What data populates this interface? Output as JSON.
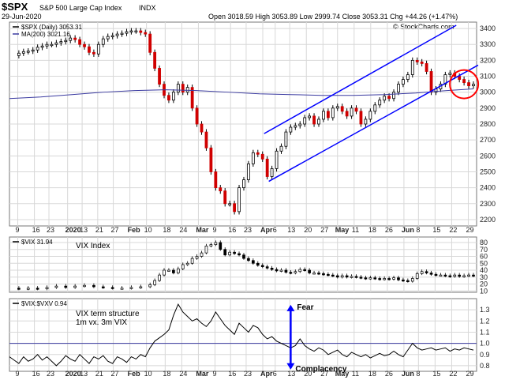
{
  "header": {
    "symbol_title": "$SPX",
    "symbol_desc": "S&P 500 Large Cap Index",
    "exchange": "INDX",
    "date": "29-Jun-2020",
    "ohlc": "Open 3018.59  High 3053.89  Low 2999.74  Close 3053.31  Chg +44.26 (+1.47%)",
    "watermark": "© StockCharts.com"
  },
  "chart_data": [
    {
      "type": "candlestick",
      "title": "",
      "legend": [
        {
          "label": "$SPX (Daily) 3053.31",
          "color": "#000000"
        },
        {
          "label": "MA(200) 3021.16",
          "color": "#3a3aa0"
        }
      ],
      "ylim": [
        2160,
        3440
      ],
      "yticks": [
        2200,
        2300,
        2400,
        2500,
        2600,
        2700,
        2800,
        2900,
        3000,
        3100,
        3200,
        3300,
        3400
      ],
      "close_path": [
        [
          3,
          3230
        ],
        [
          6,
          3245
        ],
        [
          9,
          3255
        ],
        [
          12,
          3258
        ],
        [
          15,
          3265
        ],
        [
          18,
          3282
        ],
        [
          21,
          3290
        ],
        [
          24,
          3300
        ],
        [
          27,
          3300
        ],
        [
          30,
          3310
        ],
        [
          33,
          3318
        ],
        [
          36,
          3325
        ],
        [
          39,
          3340
        ],
        [
          42,
          3330
        ],
        [
          45,
          3300
        ],
        [
          48,
          3285
        ],
        [
          51,
          3250
        ],
        [
          54,
          3240
        ],
        [
          57,
          3300
        ],
        [
          60,
          3335
        ],
        [
          63,
          3350
        ],
        [
          66,
          3355
        ],
        [
          69,
          3365
        ],
        [
          72,
          3370
        ],
        [
          75,
          3380
        ],
        [
          78,
          3385
        ],
        [
          81,
          3385
        ],
        [
          84,
          3375
        ],
        [
          87,
          3365
        ],
        [
          90,
          3250
        ],
        [
          93,
          3150
        ],
        [
          96,
          3050
        ],
        [
          99,
          2980
        ],
        [
          102,
          2950
        ],
        [
          105,
          3000
        ],
        [
          108,
          3050
        ],
        [
          111,
          3000
        ],
        [
          114,
          3030
        ],
        [
          117,
          2900
        ],
        [
          120,
          2800
        ],
        [
          123,
          2750
        ],
        [
          126,
          2650
        ],
        [
          129,
          2500
        ],
        [
          132,
          2400
        ],
        [
          135,
          2380
        ],
        [
          138,
          2300
        ],
        [
          141,
          2300
        ],
        [
          144,
          2250
        ],
        [
          147,
          2400
        ],
        [
          150,
          2450
        ],
        [
          153,
          2550
        ],
        [
          156,
          2620
        ],
        [
          159,
          2610
        ],
        [
          162,
          2580
        ],
        [
          165,
          2470
        ],
        [
          168,
          2520
        ],
        [
          171,
          2630
        ],
        [
          174,
          2660
        ],
        [
          177,
          2750
        ],
        [
          180,
          2780
        ],
        [
          183,
          2790
        ],
        [
          186,
          2800
        ],
        [
          189,
          2840
        ],
        [
          192,
          2850
        ],
        [
          195,
          2800
        ],
        [
          198,
          2830
        ],
        [
          201,
          2880
        ],
        [
          204,
          2840
        ],
        [
          207,
          2900
        ],
        [
          210,
          2910
        ],
        [
          213,
          2880
        ],
        [
          216,
          2850
        ],
        [
          219,
          2900
        ],
        [
          222,
          2880
        ],
        [
          225,
          2800
        ],
        [
          228,
          2830
        ],
        [
          231,
          2880
        ],
        [
          234,
          2920
        ],
        [
          237,
          2950
        ],
        [
          240,
          2975
        ],
        [
          243,
          2960
        ],
        [
          246,
          3000
        ],
        [
          249,
          3050
        ],
        [
          252,
          3080
        ],
        [
          255,
          3110
        ],
        [
          258,
          3200
        ],
        [
          261,
          3190
        ],
        [
          264,
          3180
        ],
        [
          267,
          3130
        ],
        [
          270,
          3000
        ],
        [
          273,
          3020
        ],
        [
          276,
          3050
        ],
        [
          279,
          3110
        ],
        [
          282,
          3120
        ],
        [
          285,
          3100
        ],
        [
          288,
          3080
        ],
        [
          291,
          3060
        ],
        [
          294,
          3040
        ],
        [
          297,
          3050
        ]
      ],
      "ma200": [
        [
          0,
          2960
        ],
        [
          20,
          2970
        ],
        [
          40,
          2985
        ],
        [
          60,
          3000
        ],
        [
          80,
          3010
        ],
        [
          100,
          3015
        ],
        [
          120,
          3010
        ],
        [
          140,
          3000
        ],
        [
          160,
          2990
        ],
        [
          180,
          2985
        ],
        [
          200,
          2980
        ],
        [
          220,
          2980
        ],
        [
          240,
          2985
        ],
        [
          260,
          2995
        ],
        [
          280,
          3010
        ],
        [
          297,
          3021
        ]
      ]
    },
    {
      "type": "candlestick",
      "title": "VIX Index",
      "legend": [
        {
          "label": "$VIX 31.94",
          "color": "#000000"
        }
      ],
      "ylim": [
        8,
        88
      ],
      "yticks": [
        10,
        20,
        30,
        40,
        50,
        60,
        70,
        80
      ],
      "values": [
        [
          0,
          14
        ],
        [
          6,
          13
        ],
        [
          12,
          14
        ],
        [
          18,
          13
        ],
        [
          24,
          15
        ],
        [
          30,
          17
        ],
        [
          36,
          15
        ],
        [
          42,
          17
        ],
        [
          48,
          18
        ],
        [
          54,
          16
        ],
        [
          60,
          15
        ],
        [
          66,
          14
        ],
        [
          72,
          14
        ],
        [
          78,
          15
        ],
        [
          84,
          16
        ],
        [
          90,
          19
        ],
        [
          93,
          25
        ],
        [
          96,
          33
        ],
        [
          99,
          40
        ],
        [
          102,
          40
        ],
        [
          105,
          36
        ],
        [
          108,
          42
        ],
        [
          111,
          48
        ],
        [
          114,
          50
        ],
        [
          117,
          57
        ],
        [
          120,
          60
        ],
        [
          123,
          65
        ],
        [
          126,
          75
        ],
        [
          129,
          77
        ],
        [
          132,
          80
        ],
        [
          135,
          70
        ],
        [
          138,
          62
        ],
        [
          141,
          66
        ],
        [
          144,
          64
        ],
        [
          147,
          62
        ],
        [
          150,
          57
        ],
        [
          153,
          54
        ],
        [
          156,
          50
        ],
        [
          159,
          47
        ],
        [
          162,
          45
        ],
        [
          165,
          43
        ],
        [
          168,
          41
        ],
        [
          171,
          39
        ],
        [
          174,
          40
        ],
        [
          177,
          37
        ],
        [
          180,
          36
        ],
        [
          183,
          38
        ],
        [
          186,
          41
        ],
        [
          189,
          40
        ],
        [
          192,
          36
        ],
        [
          195,
          36
        ],
        [
          198,
          35
        ],
        [
          201,
          34
        ],
        [
          204,
          33
        ],
        [
          207,
          32
        ],
        [
          210,
          30
        ],
        [
          213,
          32
        ],
        [
          216,
          30
        ],
        [
          219,
          31
        ],
        [
          222,
          30
        ],
        [
          225,
          29
        ],
        [
          228,
          28
        ],
        [
          231,
          29
        ],
        [
          234,
          28
        ],
        [
          237,
          27
        ],
        [
          240,
          28
        ],
        [
          243,
          27
        ],
        [
          246,
          29
        ],
        [
          249,
          26
        ],
        [
          252,
          25
        ],
        [
          255,
          24
        ],
        [
          258,
          28
        ],
        [
          261,
          35
        ],
        [
          264,
          38
        ],
        [
          267,
          36
        ],
        [
          270,
          34
        ],
        [
          273,
          33
        ],
        [
          276,
          33
        ],
        [
          279,
          32
        ],
        [
          282,
          31
        ],
        [
          285,
          33
        ],
        [
          288,
          31
        ],
        [
          291,
          32
        ],
        [
          294,
          33
        ],
        [
          297,
          32
        ]
      ]
    },
    {
      "type": "line",
      "title": "VIX term structure\n1m vx. 3m VIX",
      "legend": [
        {
          "label": "$VIX:$VXV 0.94",
          "color": "#000000"
        }
      ],
      "ylim": [
        0.75,
        1.4
      ],
      "yticks": [
        0.8,
        0.9,
        1.0,
        1.1,
        1.2,
        1.3
      ],
      "reference_line": 1.0,
      "annotations": [
        "Fear",
        "Complacency"
      ],
      "values": [
        [
          0,
          0.88
        ],
        [
          3,
          0.85
        ],
        [
          6,
          0.82
        ],
        [
          9,
          0.88
        ],
        [
          12,
          0.84
        ],
        [
          15,
          0.86
        ],
        [
          18,
          0.9
        ],
        [
          21,
          0.85
        ],
        [
          24,
          0.88
        ],
        [
          27,
          0.84
        ],
        [
          30,
          0.8
        ],
        [
          33,
          0.84
        ],
        [
          36,
          0.89
        ],
        [
          39,
          0.86
        ],
        [
          42,
          0.84
        ],
        [
          45,
          0.9
        ],
        [
          48,
          0.86
        ],
        [
          51,
          0.82
        ],
        [
          54,
          0.88
        ],
        [
          57,
          0.86
        ],
        [
          60,
          0.89
        ],
        [
          63,
          0.84
        ],
        [
          66,
          0.82
        ],
        [
          69,
          0.88
        ],
        [
          72,
          0.86
        ],
        [
          75,
          0.83
        ],
        [
          78,
          0.88
        ],
        [
          81,
          0.86
        ],
        [
          84,
          0.9
        ],
        [
          87,
          0.88
        ],
        [
          90,
          0.96
        ],
        [
          93,
          1.02
        ],
        [
          96,
          1.05
        ],
        [
          99,
          1.08
        ],
        [
          102,
          1.12
        ],
        [
          105,
          1.25
        ],
        [
          108,
          1.35
        ],
        [
          111,
          1.28
        ],
        [
          114,
          1.24
        ],
        [
          117,
          1.2
        ],
        [
          120,
          1.22
        ],
        [
          123,
          1.18
        ],
        [
          126,
          1.15
        ],
        [
          129,
          1.2
        ],
        [
          132,
          1.28
        ],
        [
          135,
          1.22
        ],
        [
          138,
          1.16
        ],
        [
          141,
          1.12
        ],
        [
          144,
          1.08
        ],
        [
          147,
          1.18
        ],
        [
          150,
          1.14
        ],
        [
          153,
          1.1
        ],
        [
          156,
          1.16
        ],
        [
          159,
          1.14
        ],
        [
          162,
          1.08
        ],
        [
          165,
          1.04
        ],
        [
          168,
          1.06
        ],
        [
          171,
          1.02
        ],
        [
          174,
          1.0
        ],
        [
          177,
          0.98
        ],
        [
          180,
          0.96
        ],
        [
          183,
          0.98
        ],
        [
          186,
          1.04
        ],
        [
          189,
          0.98
        ],
        [
          192,
          0.95
        ],
        [
          195,
          0.93
        ],
        [
          198,
          0.96
        ],
        [
          201,
          0.94
        ],
        [
          204,
          0.9
        ],
        [
          207,
          0.92
        ],
        [
          210,
          0.94
        ],
        [
          213,
          0.9
        ],
        [
          216,
          0.88
        ],
        [
          219,
          0.92
        ],
        [
          222,
          0.9
        ],
        [
          225,
          0.88
        ],
        [
          228,
          0.9
        ],
        [
          231,
          0.87
        ],
        [
          234,
          0.89
        ],
        [
          237,
          0.91
        ],
        [
          240,
          0.89
        ],
        [
          243,
          0.9
        ],
        [
          246,
          0.93
        ],
        [
          249,
          0.9
        ],
        [
          252,
          0.88
        ],
        [
          255,
          0.94
        ],
        [
          258,
          1.0
        ],
        [
          261,
          0.96
        ],
        [
          264,
          0.94
        ],
        [
          267,
          0.95
        ],
        [
          270,
          0.96
        ],
        [
          273,
          0.94
        ],
        [
          276,
          0.95
        ],
        [
          279,
          0.96
        ],
        [
          282,
          0.93
        ],
        [
          285,
          0.95
        ],
        [
          288,
          0.94
        ],
        [
          291,
          0.96
        ],
        [
          294,
          0.95
        ],
        [
          297,
          0.94
        ]
      ]
    }
  ],
  "x_axis": {
    "labels": [
      "9",
      "16",
      "23",
      "2020",
      "13",
      "21",
      "27",
      "Feb",
      "10",
      "18",
      "24",
      "Mar",
      "9",
      "16",
      "23",
      "Apr",
      "6",
      "13",
      "20",
      "27",
      "May",
      "11",
      "18",
      "26",
      "Jun",
      "8",
      "15",
      "22",
      "29"
    ],
    "positions": [
      8,
      24,
      38,
      56,
      70,
      85,
      100,
      116,
      132,
      150,
      166,
      182,
      198,
      213,
      228,
      244,
      256,
      270,
      286,
      302,
      316,
      332,
      348,
      364,
      380,
      394,
      410,
      426,
      442
    ]
  },
  "annotation_style": {
    "channel_color": "#0000ff",
    "circle_color": "#ff0000",
    "arrow_color": "#0000ff"
  }
}
